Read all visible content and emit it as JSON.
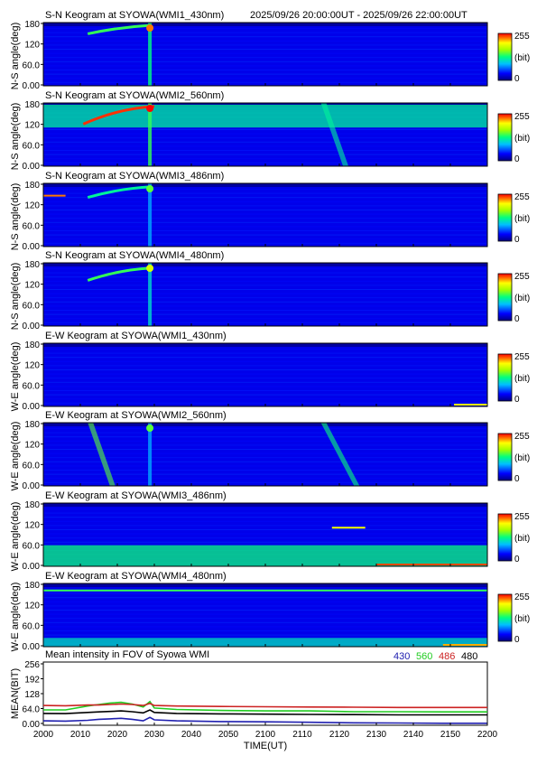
{
  "header": {
    "time_range": "2025/09/26 20:00:00UT - 2025/09/26 22:00:00UT"
  },
  "colorbar": {
    "max_label": "255",
    "unit_label": "(bit)",
    "min_label": "0"
  },
  "chart_data": [
    {
      "type": "heatmap",
      "title": "S-N Keogram at SYOWA(WMI1_430nm)",
      "ylabel": "N-S angle(deg)",
      "yticks": [
        "180",
        "120",
        "60.0",
        "0.00"
      ],
      "ylim": [
        0,
        180
      ],
      "xlim": [
        2000,
        2200
      ],
      "zlim": [
        0,
        255
      ],
      "features": [
        {
          "kind": "arc",
          "x_from": 2020,
          "x_to": 2048,
          "angle_from": 148,
          "angle_to": 172,
          "intensity": 140
        },
        {
          "kind": "burst",
          "x": 2048,
          "intensity": 230
        }
      ]
    },
    {
      "type": "heatmap",
      "title": "S-N Keogram at SYOWA(WMI2_560nm)",
      "ylabel": "N-S angle(deg)",
      "yticks": [
        "180",
        "120",
        "60.0",
        "0.00"
      ],
      "ylim": [
        0,
        180
      ],
      "xlim": [
        2000,
        2200
      ],
      "zlim": [
        0,
        255
      ],
      "features": [
        {
          "kind": "band",
          "x_from": 2000,
          "x_to": 2200,
          "angle_from": 110,
          "angle_to": 175,
          "intensity": 120
        },
        {
          "kind": "arc",
          "x_from": 2018,
          "x_to": 2050,
          "angle_from": 120,
          "angle_to": 170,
          "intensity": 245
        },
        {
          "kind": "burst",
          "x": 2048,
          "intensity": 255
        },
        {
          "kind": "streak",
          "x_from": 2125,
          "x_to": 2135,
          "intensity": 120
        }
      ]
    },
    {
      "type": "heatmap",
      "title": "S-N Keogram at SYOWA(WMI3_486nm)",
      "ylabel": "N-S angle(deg)",
      "yticks": [
        "180",
        "120",
        "60.0",
        "0.00"
      ],
      "ylim": [
        0,
        180
      ],
      "xlim": [
        2000,
        2200
      ],
      "zlim": [
        0,
        255
      ],
      "features": [
        {
          "kind": "line",
          "x_from": 2000,
          "x_to": 2010,
          "angle": 145,
          "intensity": 230
        },
        {
          "kind": "arc",
          "x_from": 2020,
          "x_to": 2048,
          "angle_from": 140,
          "angle_to": 170,
          "intensity": 120
        },
        {
          "kind": "burst",
          "x": 2048,
          "intensity": 150
        }
      ]
    },
    {
      "type": "heatmap",
      "title": "S-N Keogram at SYOWA(WMI4_480nm)",
      "ylabel": "N-S angle(deg)",
      "yticks": [
        "180",
        "120",
        "60.0",
        "0.00"
      ],
      "ylim": [
        0,
        180
      ],
      "xlim": [
        2000,
        2200
      ],
      "zlim": [
        0,
        255
      ],
      "features": [
        {
          "kind": "arc",
          "x_from": 2020,
          "x_to": 2048,
          "angle_from": 130,
          "angle_to": 165,
          "intensity": 140
        },
        {
          "kind": "burst",
          "x": 2048,
          "intensity": 190
        }
      ]
    },
    {
      "type": "heatmap",
      "title": "E-W Keogram at SYOWA(WMI1_430nm)",
      "ylabel": "W-E angle(deg)",
      "yticks": [
        "180",
        "120",
        "60.0",
        "0.00"
      ],
      "ylim": [
        0,
        180
      ],
      "xlim": [
        2000,
        2200
      ],
      "zlim": [
        0,
        255
      ],
      "features": [
        {
          "kind": "line",
          "x_from": 2185,
          "x_to": 2200,
          "angle": 5,
          "intensity": 200
        }
      ]
    },
    {
      "type": "heatmap",
      "title": "E-W Keogram at SYOWA(WMI2_560nm)",
      "ylabel": "W-E angle(deg)",
      "yticks": [
        "180",
        "120",
        "60.0",
        "0.00"
      ],
      "ylim": [
        0,
        180
      ],
      "xlim": [
        2000,
        2200
      ],
      "zlim": [
        0,
        255
      ],
      "features": [
        {
          "kind": "streak",
          "x_from": 2020,
          "x_to": 2030,
          "intensity": 150
        },
        {
          "kind": "burst",
          "x": 2048,
          "intensity": 150
        },
        {
          "kind": "streak",
          "x_from": 2125,
          "x_to": 2140,
          "intensity": 130
        }
      ]
    },
    {
      "type": "heatmap",
      "title": "E-W Keogram at SYOWA(WMI3_486nm)",
      "ylabel": "W-E angle(deg)",
      "yticks": [
        "180",
        "120",
        "60.0",
        "0.00"
      ],
      "ylim": [
        0,
        180
      ],
      "xlim": [
        2000,
        2200
      ],
      "zlim": [
        0,
        255
      ],
      "features": [
        {
          "kind": "band",
          "x_from": 2000,
          "x_to": 2200,
          "angle_from": 0,
          "angle_to": 60,
          "intensity": 130
        },
        {
          "kind": "line",
          "x_from": 2130,
          "x_to": 2145,
          "angle": 110,
          "intensity": 200
        },
        {
          "kind": "line",
          "x_from": 2150,
          "x_to": 2200,
          "angle": 5,
          "intensity": 240
        }
      ]
    },
    {
      "type": "heatmap",
      "title": "E-W Keogram at SYOWA(WMI4_480nm)",
      "ylabel": "W-E angle(deg)",
      "yticks": [
        "180",
        "120",
        "60.0",
        "0.00"
      ],
      "ylim": [
        0,
        180
      ],
      "xlim": [
        2000,
        2200
      ],
      "zlim": [
        0,
        255
      ],
      "features": [
        {
          "kind": "line",
          "x_from": 2000,
          "x_to": 2200,
          "angle": 160,
          "intensity": 140
        },
        {
          "kind": "band",
          "x_from": 2000,
          "x_to": 2200,
          "angle_from": 0,
          "angle_to": 25,
          "intensity": 110
        },
        {
          "kind": "line",
          "x_from": 2180,
          "x_to": 2200,
          "angle": 5,
          "intensity": 220
        }
      ]
    },
    {
      "type": "line",
      "title": "Mean intensity in FOV of Syowa WMI",
      "xlabel": "TIME(UT)",
      "ylabel": "MEAN(BIT)",
      "yticks": [
        "256",
        "192",
        "128",
        "64.0",
        "0.00"
      ],
      "ylim": [
        0,
        256
      ],
      "xlim": [
        2000,
        2200
      ],
      "xticks": [
        "2000",
        "2010",
        "2020",
        "2030",
        "2040",
        "2050",
        "2100",
        "2110",
        "2120",
        "2130",
        "2140",
        "2150",
        "2200"
      ],
      "x": [
        2000,
        2010,
        2020,
        2025,
        2030,
        2035,
        2040,
        2045,
        2048,
        2050,
        2060,
        2080,
        2100,
        2120,
        2140,
        2160,
        2180,
        2200
      ],
      "series": [
        {
          "name": "430",
          "color": "#2020b0",
          "values": [
            18,
            17,
            20,
            24,
            26,
            28,
            24,
            18,
            32,
            22,
            18,
            15,
            14,
            12,
            10,
            9,
            8,
            8
          ]
        },
        {
          "name": "560",
          "color": "#22cc22",
          "values": [
            62,
            62,
            78,
            84,
            90,
            93,
            86,
            74,
            96,
            70,
            64,
            60,
            58,
            58,
            55,
            55,
            54,
            54
          ]
        },
        {
          "name": "486",
          "color": "#cc2222",
          "values": [
            80,
            79,
            82,
            82,
            84,
            86,
            84,
            80,
            88,
            80,
            78,
            76,
            75,
            74,
            73,
            72,
            72,
            72
          ]
        },
        {
          "name": "480",
          "color": "#000000",
          "values": [
            48,
            47,
            52,
            54,
            56,
            58,
            55,
            50,
            62,
            52,
            48,
            46,
            45,
            44,
            43,
            42,
            42,
            42
          ]
        }
      ]
    }
  ]
}
